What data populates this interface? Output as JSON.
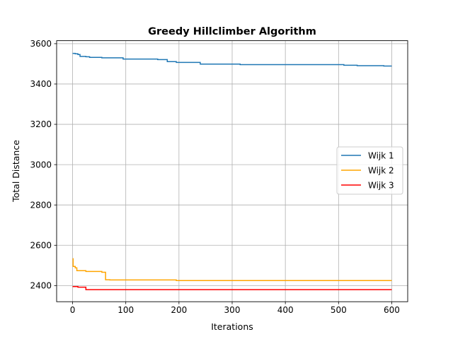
{
  "chart_data": {
    "type": "line",
    "title": "Greedy Hillclimber Algorithm",
    "xlabel": "Iterations",
    "ylabel": "Total Distance",
    "xlim": [
      -30,
      630
    ],
    "ylim": [
      2320,
      3615
    ],
    "xticks": [
      0,
      100,
      200,
      300,
      400,
      500,
      600
    ],
    "yticks": [
      2400,
      2600,
      2800,
      3000,
      3200,
      3400,
      3600
    ],
    "grid": true,
    "legend_position": "center-right",
    "series": [
      {
        "name": "Wijk 1",
        "color": "#1f77b4",
        "points": [
          [
            0,
            3552
          ],
          [
            5,
            3552
          ],
          [
            5,
            3550
          ],
          [
            10,
            3550
          ],
          [
            10,
            3546
          ],
          [
            14,
            3546
          ],
          [
            14,
            3537
          ],
          [
            25,
            3537
          ],
          [
            25,
            3535
          ],
          [
            32,
            3535
          ],
          [
            32,
            3532
          ],
          [
            55,
            3532
          ],
          [
            55,
            3530
          ],
          [
            95,
            3530
          ],
          [
            95,
            3524
          ],
          [
            160,
            3524
          ],
          [
            160,
            3521
          ],
          [
            178,
            3521
          ],
          [
            178,
            3511
          ],
          [
            195,
            3511
          ],
          [
            195,
            3507
          ],
          [
            240,
            3507
          ],
          [
            240,
            3499
          ],
          [
            315,
            3499
          ],
          [
            315,
            3496
          ],
          [
            510,
            3496
          ],
          [
            510,
            3493
          ],
          [
            535,
            3493
          ],
          [
            535,
            3491
          ],
          [
            585,
            3491
          ],
          [
            585,
            3489
          ],
          [
            600,
            3489
          ]
        ]
      },
      {
        "name": "Wijk 2",
        "color": "#ffa500",
        "points": [
          [
            0,
            2533
          ],
          [
            1,
            2533
          ],
          [
            1,
            2495
          ],
          [
            5,
            2495
          ],
          [
            5,
            2488
          ],
          [
            8,
            2488
          ],
          [
            8,
            2474
          ],
          [
            25,
            2474
          ],
          [
            25,
            2470
          ],
          [
            55,
            2470
          ],
          [
            55,
            2466
          ],
          [
            62,
            2466
          ],
          [
            62,
            2429
          ],
          [
            70,
            2429
          ],
          [
            70,
            2428
          ],
          [
            195,
            2428
          ],
          [
            195,
            2425
          ],
          [
            600,
            2425
          ]
        ]
      },
      {
        "name": "Wijk 3",
        "color": "#ff0000",
        "points": [
          [
            0,
            2395
          ],
          [
            10,
            2395
          ],
          [
            10,
            2392
          ],
          [
            25,
            2392
          ],
          [
            25,
            2380
          ],
          [
            600,
            2380
          ]
        ]
      }
    ]
  }
}
